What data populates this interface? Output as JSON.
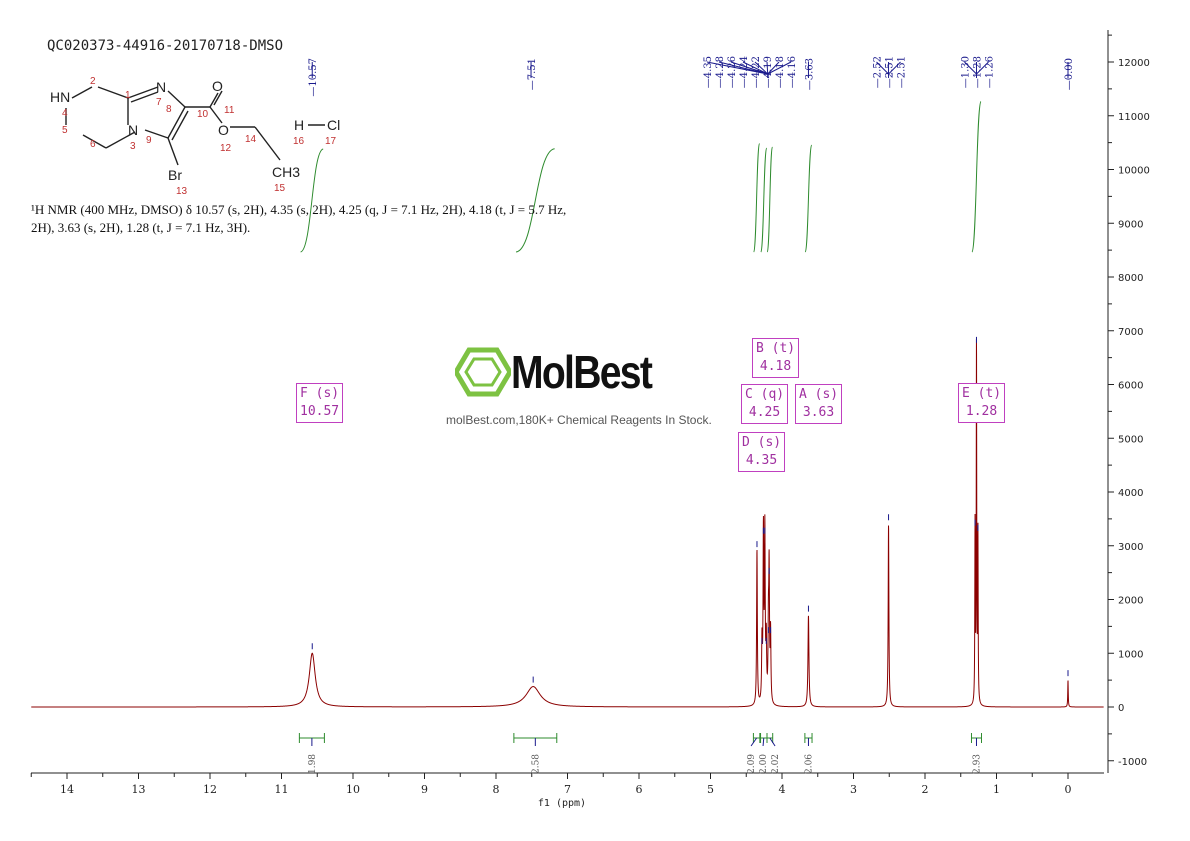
{
  "title": "QC020373-44916-20170718-DMSO",
  "description": "¹H NMR (400 MHz, DMSO) δ 10.57 (s, 2H), 4.35 (s, 2H), 4.25 (q, J = 7.1 Hz, 2H), 4.18 (t, J = 5.7 Hz, 2H), 3.63 (s, 2H), 1.28 (t, J = 7.1 Hz, 3H).",
  "watermark": {
    "brand": "MolBest",
    "tagline": "molBest.com,180K+ Chemical Reagents In Stock."
  },
  "structure": {
    "atoms": [
      "HN",
      "N",
      "N",
      "O",
      "O",
      "Br",
      "CH3",
      "H",
      "Cl"
    ],
    "numbers": [
      "1",
      "2",
      "3",
      "4",
      "5",
      "6",
      "7",
      "8",
      "9",
      "10",
      "11",
      "12",
      "13",
      "14",
      "15",
      "16",
      "17"
    ]
  },
  "multiplets": [
    {
      "label": "F (s)",
      "shift": "10.57"
    },
    {
      "label": "B (t)",
      "shift": "4.18"
    },
    {
      "label": "C (q)",
      "shift": "4.25"
    },
    {
      "label": "A (s)",
      "shift": "3.63"
    },
    {
      "label": "D (s)",
      "shift": "4.35"
    },
    {
      "label": "E (t)",
      "shift": "1.28"
    }
  ],
  "chart_data": {
    "type": "line",
    "xlabel": "f1 (ppm)",
    "xlim": [
      14.5,
      -0.5
    ],
    "ylim": [
      -1200,
      12600
    ],
    "xticks": [
      "14",
      "13",
      "12",
      "11",
      "10",
      "9",
      "8",
      "7",
      "6",
      "5",
      "4",
      "3",
      "2",
      "1",
      "0"
    ],
    "yticks": [
      "12000",
      "11000",
      "10000",
      "9000",
      "8000",
      "7000",
      "6000",
      "5000",
      "4000",
      "3000",
      "2000",
      "1000",
      "0",
      "-1000"
    ],
    "peak_labels": [
      "10.57",
      "7.51",
      "4.35",
      "4.28",
      "4.26",
      "4.24",
      "4.22",
      "4.19",
      "4.18",
      "4.16",
      "3.63",
      "2.52",
      "2.51",
      "2.51",
      "1.30",
      "1.28",
      "1.26",
      "0.00"
    ],
    "peaks": [
      {
        "ppm": 10.57,
        "height": 1000,
        "width": 0.05
      },
      {
        "ppm": 7.48,
        "height": 380,
        "width": 0.12
      },
      {
        "ppm": 4.35,
        "height": 2900,
        "width": 0.006
      },
      {
        "ppm": 4.28,
        "height": 1100,
        "width": 0.006
      },
      {
        "ppm": 4.26,
        "height": 3150,
        "width": 0.006
      },
      {
        "ppm": 4.24,
        "height": 3150,
        "width": 0.006
      },
      {
        "ppm": 4.22,
        "height": 1100,
        "width": 0.006
      },
      {
        "ppm": 4.19,
        "height": 1300,
        "width": 0.006
      },
      {
        "ppm": 4.18,
        "height": 2400,
        "width": 0.006
      },
      {
        "ppm": 4.16,
        "height": 1300,
        "width": 0.006
      },
      {
        "ppm": 3.63,
        "height": 1700,
        "width": 0.008
      },
      {
        "ppm": 2.51,
        "height": 3400,
        "width": 0.006
      },
      {
        "ppm": 1.3,
        "height": 3300,
        "width": 0.004
      },
      {
        "ppm": 1.28,
        "height": 6700,
        "width": 0.004
      },
      {
        "ppm": 1.26,
        "height": 3200,
        "width": 0.004
      },
      {
        "ppm": 0.0,
        "height": 500,
        "width": 0.004
      }
    ],
    "integrals": [
      {
        "from": 10.75,
        "to": 10.4,
        "value": "1.98"
      },
      {
        "from": 7.75,
        "to": 7.15,
        "value": "2.58"
      },
      {
        "from": 4.4,
        "to": 4.31,
        "value": "2.09"
      },
      {
        "from": 4.3,
        "to": 4.21,
        "value": "2.00"
      },
      {
        "from": 4.21,
        "to": 4.13,
        "value": "2.02"
      },
      {
        "from": 3.68,
        "to": 3.58,
        "value": "2.06"
      },
      {
        "from": 1.35,
        "to": 1.21,
        "value": "2.93"
      }
    ],
    "colors": {
      "spectrum": "#8b0000",
      "integral": "#2e8b2e",
      "peak_label": "#1a1a8c",
      "multiplet": "#c040c0",
      "logo": "#7dc242"
    }
  }
}
